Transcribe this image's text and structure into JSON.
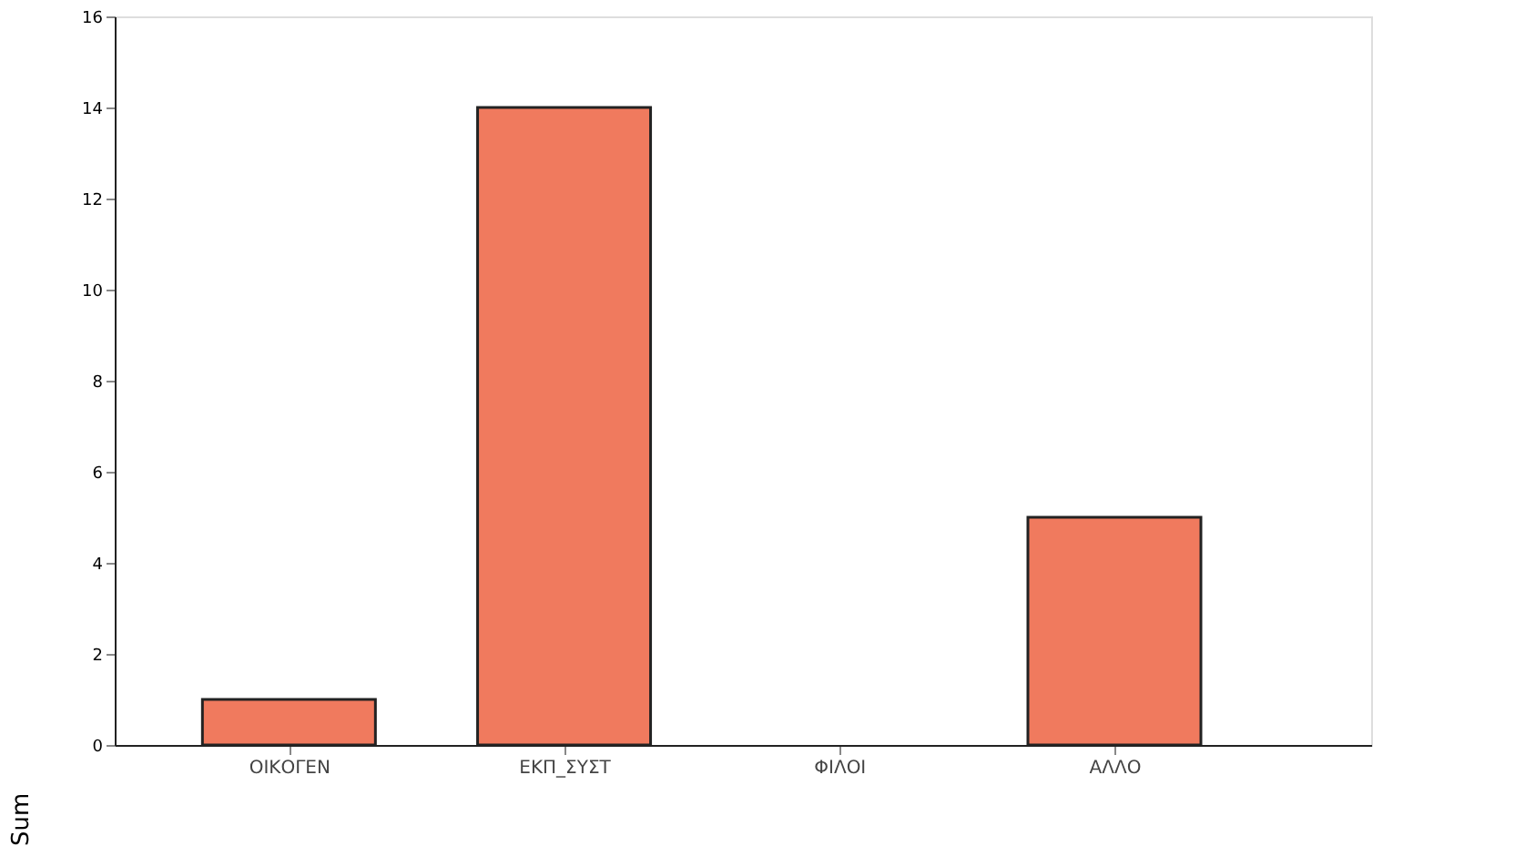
{
  "chart_data": {
    "type": "bar",
    "ylabel": "Sum",
    "categories": [
      "ΟΙΚΟΓΕΝ",
      "ΕΚΠ_ΣΥΣΤ",
      "ΦΙΛΟΙ",
      "ΑΛΛΟ"
    ],
    "values": [
      1,
      14,
      0,
      5
    ],
    "color": "#f07a5e",
    "ylim": [
      0,
      16
    ],
    "yticks": [
      0,
      2,
      4,
      6,
      8,
      10,
      12,
      14,
      16
    ],
    "grid": false
  }
}
